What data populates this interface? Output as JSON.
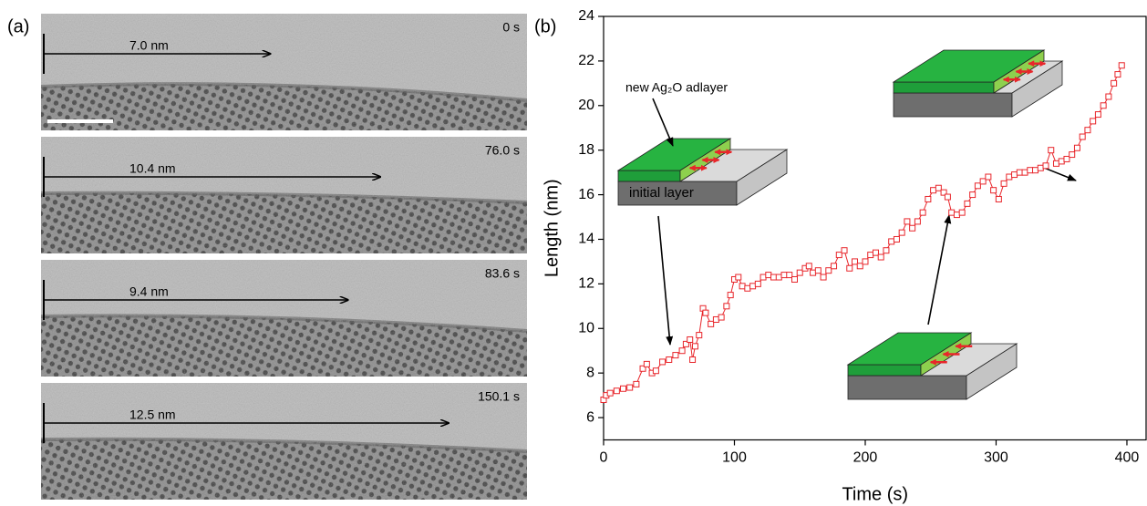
{
  "panel_a": {
    "label": "(a)",
    "frames": [
      {
        "time": "0 s",
        "distance": {
          "value": 7.0,
          "label": "7.0 nm"
        }
      },
      {
        "time": "76.0 s",
        "distance": {
          "value": 10.4,
          "label": "10.4 nm"
        }
      },
      {
        "time": "83.6 s",
        "distance": {
          "value": 9.4,
          "label": "9.4 nm"
        }
      },
      {
        "time": "150.1 s",
        "distance": {
          "value": 12.5,
          "label": "12.5 nm"
        }
      }
    ]
  },
  "chart_data": {
    "type": "line",
    "panel_label": "(b)",
    "x_label": "Time (s)",
    "y_label": "Length (nm)",
    "annotations": [
      "new Ag₂O adlayer",
      "initial layer"
    ],
    "color": "#e8262b",
    "x": [
      0,
      2,
      5,
      10,
      15,
      20,
      25,
      30,
      33,
      37,
      40,
      45,
      50,
      55,
      60,
      63,
      66,
      68,
      70,
      73,
      76,
      78,
      82,
      86,
      90,
      94,
      97,
      100,
      103,
      106,
      110,
      114,
      118,
      122,
      126,
      130,
      134,
      138,
      142,
      146,
      150,
      154,
      157,
      160,
      164,
      168,
      172,
      176,
      180,
      184,
      188,
      192,
      196,
      200,
      204,
      208,
      212,
      216,
      220,
      224,
      228,
      232,
      236,
      240,
      244,
      248,
      252,
      256,
      260,
      263,
      266,
      270,
      274,
      278,
      282,
      286,
      290,
      294,
      298,
      302,
      306,
      310,
      314,
      318,
      322,
      326,
      330,
      334,
      338,
      342,
      346,
      350,
      354,
      358,
      362,
      366,
      370,
      374,
      378,
      382,
      386,
      390,
      393,
      396
    ],
    "values": [
      6.8,
      7.0,
      7.1,
      7.2,
      7.3,
      7.35,
      7.5,
      8.2,
      8.4,
      8.0,
      8.1,
      8.5,
      8.6,
      8.8,
      9.0,
      9.3,
      9.5,
      8.6,
      9.2,
      9.7,
      10.9,
      10.7,
      10.2,
      10.4,
      10.5,
      11.0,
      11.5,
      12.2,
      12.3,
      11.9,
      11.8,
      11.9,
      12.0,
      12.3,
      12.4,
      12.3,
      12.3,
      12.4,
      12.4,
      12.2,
      12.5,
      12.7,
      12.8,
      12.5,
      12.6,
      12.3,
      12.6,
      12.8,
      13.3,
      13.5,
      12.7,
      13.0,
      12.8,
      13.0,
      13.3,
      13.4,
      13.2,
      13.5,
      13.9,
      14.0,
      14.3,
      14.8,
      14.5,
      14.8,
      15.2,
      15.8,
      16.2,
      16.3,
      16.1,
      15.9,
      15.2,
      15.1,
      15.2,
      15.6,
      16.0,
      16.4,
      16.6,
      16.8,
      16.2,
      15.8,
      16.5,
      16.8,
      16.9,
      17.0,
      17.0,
      17.1,
      17.1,
      17.2,
      17.3,
      18.0,
      17.4,
      17.5,
      17.6,
      17.8,
      18.1,
      18.6,
      18.9,
      19.3,
      19.6,
      20.0,
      20.4,
      21.0,
      21.4,
      21.8
    ],
    "xlim": [
      0,
      415
    ],
    "ylim": [
      5,
      24
    ],
    "xticks": [
      0,
      100,
      200,
      300,
      400
    ],
    "yticks": [
      6,
      8,
      10,
      12,
      14,
      16,
      18,
      20,
      22,
      24
    ]
  }
}
